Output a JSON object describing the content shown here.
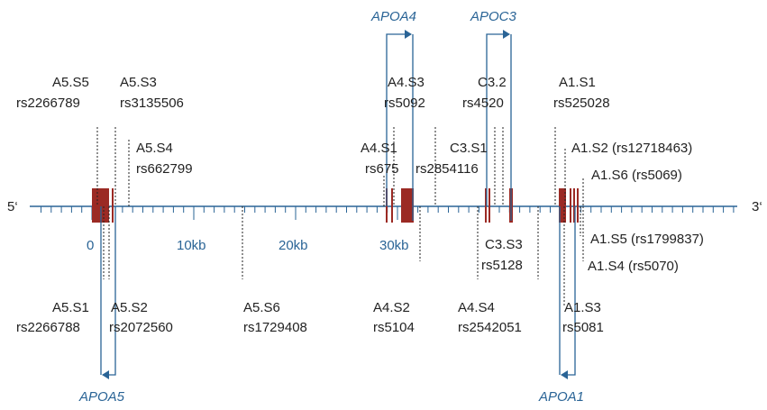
{
  "colors": {
    "axis": "#2a6496",
    "exon": "#9b2a24",
    "text": "#222222",
    "gene_label": "#2a6496"
  },
  "ends": {
    "left": "5‘",
    "right": "3‘"
  },
  "scale_labels": [
    "0",
    "10kb",
    "20kb",
    "30kb"
  ],
  "genes": [
    {
      "id": "apoa4",
      "name": "APOA4",
      "strand": "+"
    },
    {
      "id": "apoc3",
      "name": "APOC3",
      "strand": "+"
    },
    {
      "id": "apoa5",
      "name": "APOA5",
      "strand": "-"
    },
    {
      "id": "apoa1",
      "name": "APOA1",
      "strand": "-"
    }
  ],
  "snps_top": [
    {
      "id": "a5s5",
      "line1": "A5.S5",
      "line2": "rs2266789"
    },
    {
      "id": "a5s3",
      "line1": "A5.S3",
      "line2": "rs3135506"
    },
    {
      "id": "a5s4",
      "line1": "A5.S4",
      "line2": "rs662799"
    },
    {
      "id": "a4s3",
      "line1": "A4.S3",
      "line2": "rs5092"
    },
    {
      "id": "a4s1",
      "line1": "A4.S1",
      "line2": "rs675"
    },
    {
      "id": "c3s2",
      "line1": "C3.2",
      "line2": "rs4520"
    },
    {
      "id": "c3s1",
      "line1": "C3.S1",
      "line2": "rs2854116"
    },
    {
      "id": "a1s1",
      "line1": "A1.S1",
      "line2": "rs525028"
    },
    {
      "id": "a1s2",
      "line1": "A1.S2 (rs12718463)",
      "line2": ""
    },
    {
      "id": "a1s6",
      "line1": "A1.S6 (rs5069)",
      "line2": ""
    }
  ],
  "snps_bottom": [
    {
      "id": "a5s1",
      "line1": "A5.S1",
      "line2": "rs2266788"
    },
    {
      "id": "a5s2",
      "line1": "A5.S2",
      "line2": "rs2072560"
    },
    {
      "id": "a5s6",
      "line1": "A5.S6",
      "line2": "rs1729408"
    },
    {
      "id": "a4s2",
      "line1": "A4.S2",
      "line2": "rs5104"
    },
    {
      "id": "a4s4",
      "line1": "A4.S4",
      "line2": "rs2542051"
    },
    {
      "id": "c3s3",
      "line1": "C3.S3",
      "line2": "rs5128"
    },
    {
      "id": "a1s3",
      "line1": "A1.S3",
      "line2": "rs5081"
    },
    {
      "id": "a1s5",
      "line1": "A1.S5 (rs1799837)",
      "line2": ""
    },
    {
      "id": "a1s4",
      "line1": "A1.S4 (rs5070)",
      "line2": ""
    }
  ]
}
